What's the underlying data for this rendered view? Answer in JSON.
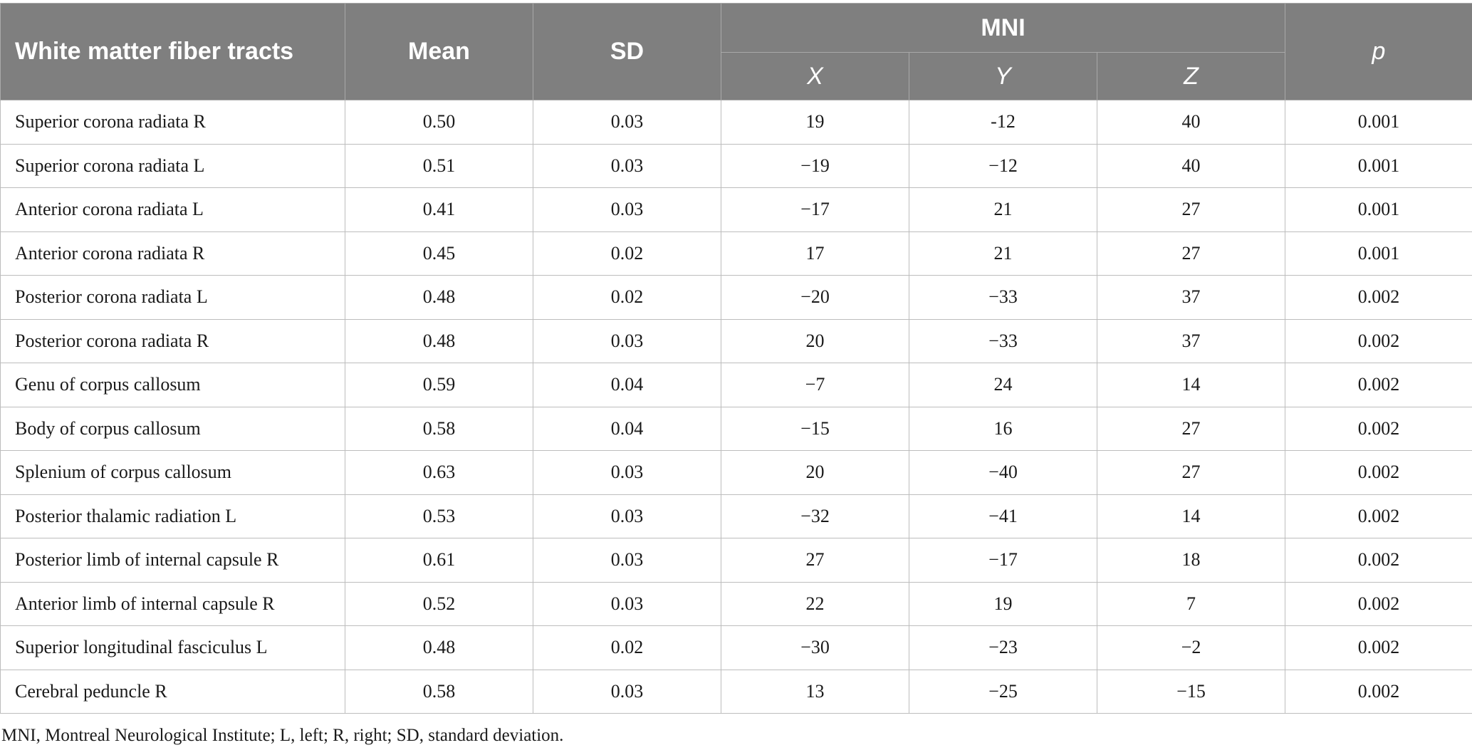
{
  "table": {
    "headers": {
      "tract": "White matter fiber tracts",
      "mean": "Mean",
      "sd": "SD",
      "mni": "MNI",
      "x": "X",
      "y": "Y",
      "z": "Z",
      "p": "p"
    },
    "rows": [
      {
        "name": "Superior corona radiata R",
        "mean": "0.50",
        "sd": "0.03",
        "x": "19",
        "y": "-12",
        "z": "40",
        "p": "0.001"
      },
      {
        "name": "Superior corona radiata L",
        "mean": "0.51",
        "sd": "0.03",
        "x": "−19",
        "y": "−12",
        "z": "40",
        "p": "0.001"
      },
      {
        "name": "Anterior corona radiata L",
        "mean": "0.41",
        "sd": "0.03",
        "x": "−17",
        "y": "21",
        "z": "27",
        "p": "0.001"
      },
      {
        "name": "Anterior corona radiata R",
        "mean": "0.45",
        "sd": "0.02",
        "x": "17",
        "y": "21",
        "z": "27",
        "p": "0.001"
      },
      {
        "name": "Posterior corona radiata L",
        "mean": "0.48",
        "sd": "0.02",
        "x": "−20",
        "y": "−33",
        "z": "37",
        "p": "0.002"
      },
      {
        "name": "Posterior corona radiata R",
        "mean": "0.48",
        "sd": "0.03",
        "x": "20",
        "y": "−33",
        "z": "37",
        "p": "0.002"
      },
      {
        "name": "Genu of corpus callosum",
        "mean": "0.59",
        "sd": "0.04",
        "x": "−7",
        "y": "24",
        "z": "14",
        "p": "0.002"
      },
      {
        "name": "Body of corpus callosum",
        "mean": "0.58",
        "sd": "0.04",
        "x": "−15",
        "y": "16",
        "z": "27",
        "p": "0.002"
      },
      {
        "name": "Splenium of corpus callosum",
        "mean": "0.63",
        "sd": "0.03",
        "x": "20",
        "y": "−40",
        "z": "27",
        "p": "0.002"
      },
      {
        "name": "Posterior thalamic radiation L",
        "mean": "0.53",
        "sd": "0.03",
        "x": "−32",
        "y": "−41",
        "z": "14",
        "p": "0.002"
      },
      {
        "name": "Posterior limb of internal capsule R",
        "mean": "0.61",
        "sd": "0.03",
        "x": "27",
        "y": "−17",
        "z": "18",
        "p": "0.002"
      },
      {
        "name": "Anterior limb of internal capsule R",
        "mean": "0.52",
        "sd": "0.03",
        "x": "22",
        "y": "19",
        "z": "7",
        "p": "0.002"
      },
      {
        "name": "Superior longitudinal fasciculus L",
        "mean": "0.48",
        "sd": "0.02",
        "x": "−30",
        "y": "−23",
        "z": "−2",
        "p": "0.002"
      },
      {
        "name": "Cerebral peduncle R",
        "mean": "0.58",
        "sd": "0.03",
        "x": "13",
        "y": "−25",
        "z": "−15",
        "p": "0.002"
      }
    ]
  },
  "footnote": "MNI, Montreal Neurological Institute; L, left; R, right; SD, standard deviation.",
  "colors": {
    "header_bg": "#7f7f7f",
    "header_text": "#ffffff",
    "grid": "#bdbdbd"
  }
}
